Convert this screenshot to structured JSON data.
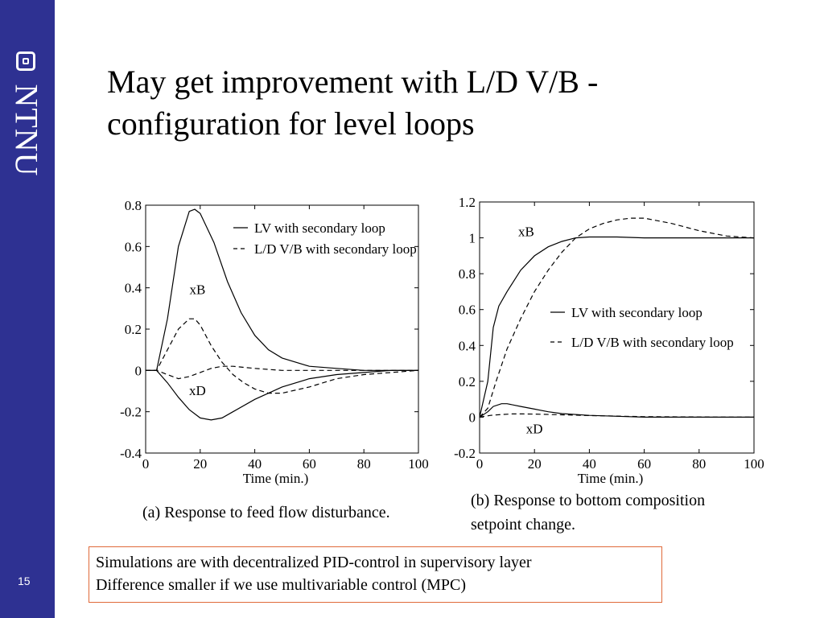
{
  "sidebar": {
    "logo_text": "NTNU",
    "page_number": "15",
    "color": "#2e3192"
  },
  "title_line1": "May get improvement with L/D V/B -",
  "title_line2": "configuration for level loops",
  "notes": {
    "line1": "Simulations are with decentralized PID-control in supervisory layer",
    "line2": "Difference smaller if we use multivariable control (MPC)",
    "border_color": "#e06a3a"
  },
  "chart_data": [
    {
      "type": "line",
      "xlabel": "Time (min.)",
      "caption": "(a) Response to feed flow disturbance.",
      "xlim": [
        0,
        100
      ],
      "ylim": [
        -0.4,
        0.8
      ],
      "xticks": [
        0,
        20,
        40,
        60,
        80,
        100
      ],
      "yticks": [
        -0.4,
        -0.2,
        0,
        0.2,
        0.4,
        0.6,
        0.8
      ],
      "legend": [
        {
          "label": "LV with secondary loop",
          "style": "solid"
        },
        {
          "label": "L/D V/B with secondary loop",
          "style": "dashed"
        }
      ],
      "annotations": [
        {
          "text": "xB",
          "x": 19,
          "y": 0.37
        },
        {
          "text": "xD",
          "x": 19,
          "y": -0.12
        }
      ],
      "series": [
        {
          "name": "xB",
          "style": "solid",
          "x": [
            0,
            4,
            8,
            12,
            16,
            18,
            20,
            25,
            30,
            35,
            40,
            45,
            50,
            60,
            70,
            80,
            90,
            100
          ],
          "y": [
            0,
            0,
            0.25,
            0.6,
            0.77,
            0.78,
            0.76,
            0.62,
            0.43,
            0.28,
            0.17,
            0.1,
            0.06,
            0.02,
            0.01,
            0,
            0,
            0
          ]
        },
        {
          "name": "xD",
          "style": "solid",
          "x": [
            0,
            4,
            8,
            12,
            16,
            20,
            24,
            28,
            32,
            40,
            50,
            60,
            70,
            80,
            90,
            100
          ],
          "y": [
            0,
            0,
            -0.06,
            -0.13,
            -0.19,
            -0.23,
            -0.24,
            -0.23,
            -0.2,
            -0.14,
            -0.08,
            -0.04,
            -0.02,
            -0.01,
            0,
            0
          ]
        },
        {
          "name": "xB",
          "style": "dashed",
          "x": [
            0,
            4,
            8,
            12,
            16,
            18,
            20,
            24,
            28,
            32,
            36,
            40,
            45,
            50,
            60,
            70,
            80,
            90,
            100
          ],
          "y": [
            0,
            0,
            0.1,
            0.2,
            0.25,
            0.25,
            0.22,
            0.12,
            0.04,
            -0.02,
            -0.06,
            -0.09,
            -0.11,
            -0.11,
            -0.08,
            -0.04,
            -0.02,
            -0.01,
            0
          ]
        },
        {
          "name": "xD",
          "style": "dashed",
          "x": [
            0,
            4,
            8,
            12,
            16,
            20,
            24,
            28,
            32,
            36,
            40,
            45,
            50,
            60,
            70,
            80,
            100
          ],
          "y": [
            0,
            0,
            -0.02,
            -0.04,
            -0.03,
            -0.01,
            0.01,
            0.02,
            0.02,
            0.015,
            0.01,
            0.005,
            0,
            0,
            0,
            0,
            0
          ]
        }
      ]
    },
    {
      "type": "line",
      "xlabel": "Time (min.)",
      "caption_line1": "(b) Response to bottom composition",
      "caption_line2": "setpoint change.",
      "xlim": [
        0,
        100
      ],
      "ylim": [
        -0.2,
        1.2
      ],
      "xticks": [
        0,
        20,
        40,
        60,
        80,
        100
      ],
      "yticks": [
        -0.2,
        0,
        0.2,
        0.4,
        0.6,
        0.8,
        1,
        1.2
      ],
      "legend": [
        {
          "label": "LV with secondary loop",
          "style": "solid"
        },
        {
          "label": "L/D V/B with secondary loop",
          "style": "dashed"
        }
      ],
      "annotations": [
        {
          "text": "xB",
          "x": 17,
          "y": 1.01
        },
        {
          "text": "xD",
          "x": 20,
          "y": -0.09
        }
      ],
      "series": [
        {
          "name": "xB",
          "style": "solid",
          "x": [
            0,
            3,
            5,
            7,
            10,
            15,
            20,
            25,
            30,
            35,
            40,
            50,
            60,
            80,
            100
          ],
          "y": [
            0,
            0.2,
            0.5,
            0.62,
            0.7,
            0.82,
            0.9,
            0.95,
            0.98,
            1,
            1.005,
            1.005,
            1,
            1,
            1
          ]
        },
        {
          "name": "xD",
          "style": "solid",
          "x": [
            0,
            3,
            5,
            8,
            10,
            15,
            20,
            25,
            30,
            40,
            50,
            60,
            80,
            100
          ],
          "y": [
            0,
            0.03,
            0.06,
            0.075,
            0.075,
            0.06,
            0.045,
            0.03,
            0.02,
            0.01,
            0.005,
            0,
            0,
            0
          ]
        },
        {
          "name": "xB",
          "style": "dashed",
          "x": [
            0,
            3,
            6,
            10,
            15,
            20,
            25,
            30,
            35,
            40,
            45,
            50,
            55,
            60,
            70,
            80,
            90,
            100
          ],
          "y": [
            0,
            0.05,
            0.2,
            0.38,
            0.55,
            0.7,
            0.82,
            0.92,
            1.0,
            1.05,
            1.08,
            1.1,
            1.11,
            1.11,
            1.08,
            1.04,
            1.01,
            1.0
          ]
        },
        {
          "name": "xD",
          "style": "dashed",
          "x": [
            0,
            4,
            8,
            12,
            16,
            20,
            30,
            40,
            50,
            60,
            70,
            80,
            90,
            100
          ],
          "y": [
            0,
            0.01,
            0.015,
            0.018,
            0.018,
            0.017,
            0.013,
            0.009,
            0.006,
            0.003,
            0.002,
            0.001,
            0,
            0
          ]
        }
      ]
    }
  ]
}
